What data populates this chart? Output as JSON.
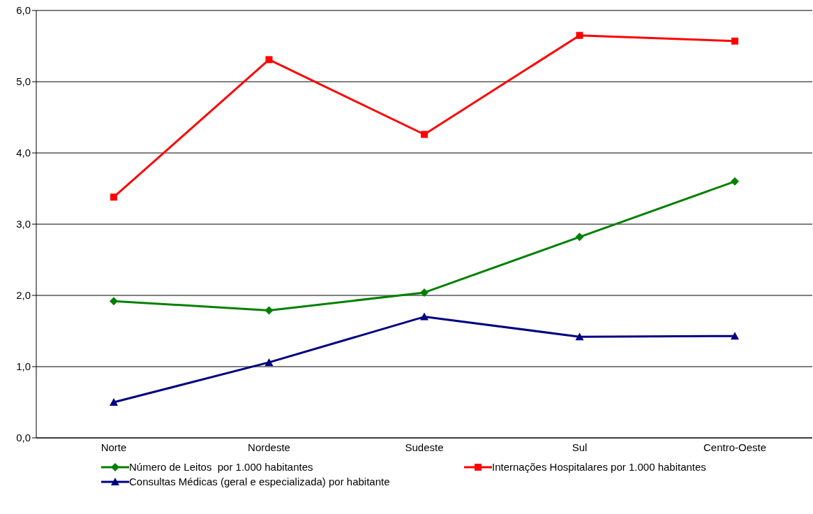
{
  "chart_data": {
    "type": "line",
    "categories": [
      "Norte",
      "Nordeste",
      "Sudeste",
      "Sul",
      "Centro-Oeste"
    ],
    "series": [
      {
        "name": "Número de Leitos  por 1.000 habitantes",
        "color": "#008000",
        "marker": "diamond",
        "values": [
          1.92,
          1.79,
          2.04,
          2.82,
          3.6
        ]
      },
      {
        "name": "Internações Hospitalares por 1.000 habitantes",
        "color": "#ff0000",
        "marker": "square",
        "values": [
          3.38,
          5.31,
          4.26,
          5.65,
          5.57
        ]
      },
      {
        "name": "Consultas Médicas (geral e especializada) por habitante",
        "color": "#000080",
        "marker": "triangle",
        "values": [
          0.5,
          1.06,
          1.7,
          1.42,
          1.43
        ]
      }
    ],
    "ylim": [
      0,
      6
    ],
    "yticks": [
      {
        "value": 0,
        "label": "0,0"
      },
      {
        "value": 1,
        "label": "1,0"
      },
      {
        "value": 2,
        "label": "2,0"
      },
      {
        "value": 3,
        "label": "3,0"
      },
      {
        "value": 4,
        "label": "4,0"
      },
      {
        "value": 5,
        "label": "5,0"
      },
      {
        "value": 6,
        "label": "6,0"
      }
    ],
    "grid": "y",
    "legend": "bottom"
  }
}
